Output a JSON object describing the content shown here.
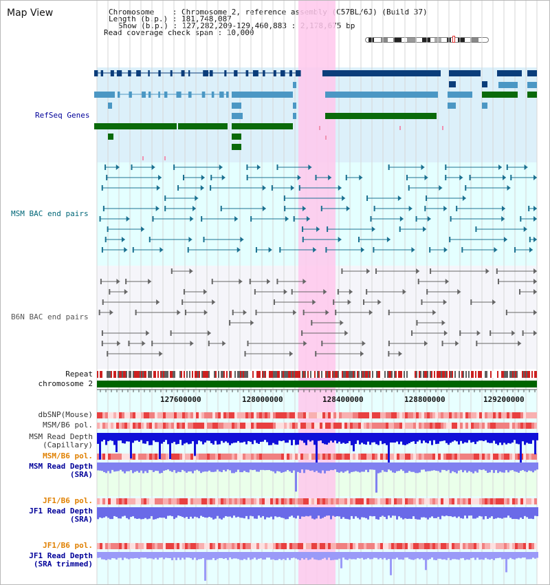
{
  "header": {
    "map_title": "Map View",
    "chromosome_line": "Chromosome    : Chromosome 2, reference assembly (C57BL/6J) (Build 37)",
    "length_line": "Length (b.p.) : 181,748,087",
    "show_line": "Show (b.p.) : 127,282,209-129,460,883 : 2,178,675 bp",
    "coverage_line": "Read coverage check span : 10,000"
  },
  "tracks": {
    "refseq": {
      "label": "RefSeq Genes",
      "color": "#000099"
    },
    "msm_bac": {
      "label": "MSM BAC end pairs",
      "color": "#006677"
    },
    "b6n_bac": {
      "label": "B6N BAC end pairs",
      "color": "#555555"
    },
    "repeat": {
      "label": "Repeat"
    },
    "chromosome": {
      "label": "chromosome 2"
    },
    "dbsnp": {
      "label": "dbSNP(Mouse)"
    },
    "msm_b6_pol": {
      "label": "MSM/B6 pol."
    },
    "msm_depth_cap": {
      "label_1": "MSM Read Depth",
      "label_2": "(Capillary)"
    },
    "msm_b6_pol_sra": {
      "label": "MSM/B6 pol.",
      "color": "#e08000"
    },
    "msm_depth_sra": {
      "label_1": "MSM Read Depth",
      "label_2": "(SRA)",
      "color": "#000099"
    },
    "jf1_b6_pol": {
      "label": "JF1/B6 pol.",
      "color": "#e08000"
    },
    "jf1_depth_sra": {
      "label_1": "JF1 Read Depth",
      "label_2": "(SRA)",
      "color": "#000099"
    },
    "jf1_b6_pol_2": {
      "label": "JF1/B6 pol.",
      "color": "#e08000"
    },
    "jf1_depth_trim": {
      "label_1": "JF1 Read Depth",
      "label_2": "(SRA trimmed)",
      "color": "#000099"
    }
  },
  "ruler": {
    "ticks": [
      "127600000",
      "128000000",
      "128400000",
      "128800000",
      "129200000"
    ]
  },
  "colors": {
    "refseq_bg": "#dcf0fa",
    "msm_bg": "#e4ffff",
    "b6n_bg": "#f5f5fa",
    "lower_bg": "#e8ffff",
    "highlight": "#ffc8ec",
    "gene_dark": "#0b3d7a",
    "gene_mid": "#4b97c4",
    "gene_green": "#0a6a0a",
    "chromosome_bar": "#006400"
  }
}
